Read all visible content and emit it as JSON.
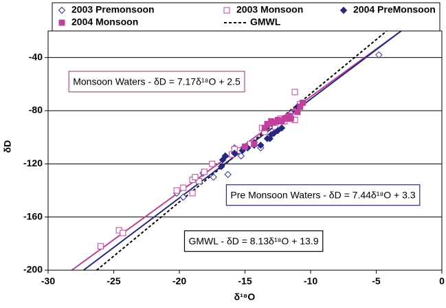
{
  "chart_data": {
    "type": "scatter",
    "xlabel": "δ¹⁸O",
    "ylabel": "δD",
    "xlim": [
      -30,
      0
    ],
    "xticks": [
      -30,
      -25,
      -20,
      -15,
      -10,
      -5,
      0
    ],
    "ylim": [
      -200,
      -20
    ],
    "yticks": [
      -200,
      -160,
      -120,
      -80,
      -40
    ],
    "grid": true,
    "series": [
      {
        "name": "2003 Premonsoon",
        "marker": "diamond-open",
        "color": "#30309a",
        "x": [
          -4.8,
          -13.8,
          -15.8,
          -16.3,
          -17.4,
          -18.2,
          -19.7,
          -20.2,
          -15.3,
          -11.5
        ],
        "values": [
          -38,
          -108,
          -108,
          -128,
          -130,
          -127,
          -145,
          -142,
          -114,
          -82
        ]
      },
      {
        "name": "2003 Monsoon",
        "marker": "square-open",
        "color": "#c0409c",
        "x": [
          -26,
          -24.6,
          -24.3,
          -20.2,
          -19.7,
          -19,
          -19,
          -18.5,
          -18.1,
          -17.5,
          -16,
          -15.5,
          -14.6,
          -13.7,
          -13.5,
          -12.7,
          -11.2,
          -11.2,
          -12,
          -12.3,
          -10.8,
          -15.8,
          -18.8
        ],
        "values": [
          -182,
          -170,
          -172,
          -140,
          -138,
          -142,
          -132,
          -133,
          -126,
          -120,
          -113,
          -110,
          -105,
          -93,
          -96,
          -92,
          -66,
          -87,
          -88,
          -86,
          -75,
          -109,
          -130
        ]
      },
      {
        "name": "2004 PreMonsoon",
        "marker": "diamond",
        "color": "#26287e",
        "x": [
          -16.8,
          -16.7,
          -16.5,
          -15.8,
          -14.8,
          -14.3,
          -13.8,
          -13.3,
          -13,
          -12.8,
          -12.2,
          -13.1,
          -12.5,
          -11,
          -14.3,
          -15.2
        ],
        "values": [
          -122,
          -117,
          -114,
          -112,
          -108,
          -106,
          -106,
          -101,
          -98,
          -97,
          -93,
          -101,
          -95,
          -77,
          -104,
          -110
        ]
      },
      {
        "name": "2004 Monsoon",
        "marker": "square",
        "color": "#c0409c",
        "x": [
          -13,
          -12.8,
          -12.5,
          -12.2,
          -12,
          -11.8,
          -11.5,
          -11,
          -10.8,
          -10.6,
          -13.3,
          -13.5,
          -14.3,
          -15,
          -11.6
        ],
        "values": [
          -88,
          -89,
          -87,
          -88,
          -86,
          -86,
          -86,
          -81,
          -77,
          -74,
          -90,
          -93,
          -105,
          -107,
          -84
        ]
      },
      {
        "name": "GMWL",
        "marker": "dashed-line",
        "color": "#000000",
        "x": [
          -26.3,
          -4.2
        ],
        "values": [
          -200,
          -20
        ]
      },
      {
        "marker": "line",
        "color": "#c0409c",
        "x": [
          -28.2,
          -3.1
        ],
        "values": [
          -200,
          -20
        ]
      },
      {
        "marker": "line",
        "color": "#26287e",
        "x": [
          -27.3,
          -3.1
        ],
        "values": [
          -200,
          -20
        ]
      }
    ],
    "annotations": [
      {
        "text": "Monsoon Waters - δD = 7.17δ¹⁸O + 2.5",
        "color": "#c0409c"
      },
      {
        "text": "Pre Monsoon Waters - δD = 7.44δ¹⁸O + 3.3",
        "color": "#26287e"
      },
      {
        "text": "GMWL - δD = 8.13δ¹⁸O + 13.9",
        "color": "#000000"
      }
    ]
  }
}
